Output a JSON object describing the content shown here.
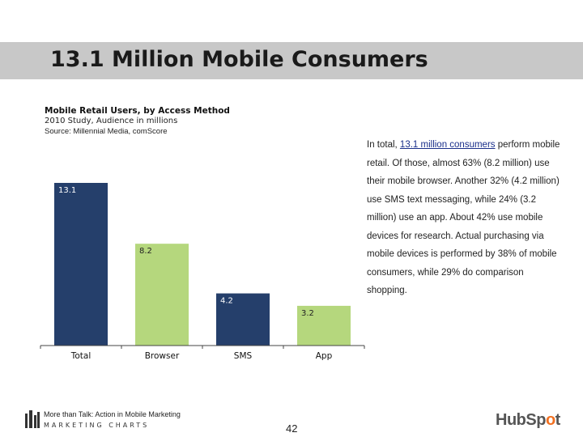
{
  "slide": {
    "title": "13.1 Million Mobile Consumers",
    "page_number": "42"
  },
  "chart_header": {
    "title": "Mobile Retail Users, by Access Method",
    "subtitle": "2010 Study, Audience in millions",
    "source": "Source: Millennial Media, comScore"
  },
  "chart_data": {
    "type": "bar",
    "categories": [
      "Total",
      "Browser",
      "SMS",
      "App"
    ],
    "values": [
      13.1,
      8.2,
      4.2,
      3.2
    ],
    "value_labels": [
      "13.1",
      "8.2",
      "4.2",
      "3.2"
    ],
    "colors": [
      "#253f6b",
      "#b5d77d",
      "#253f6b",
      "#b5d77d"
    ],
    "ylim": [
      0,
      13.1
    ],
    "grid": false,
    "legend": "none"
  },
  "description": {
    "before_link": "In total, ",
    "link_text": "13.1 million consumers",
    "after_link": " perform mobile retail. Of those, almost 63% (8.2 million) use their mobile browser. Another 32% (4.2 million) use SMS text messaging, while 24% (3.2 million) use an app. About 42% use mobile devices for research. Actual purchasing via mobile devices is performed by 38% of mobile consumers, while 29% do comparison shopping."
  },
  "footer": {
    "line1": "More than Talk: Action in Mobile Marketing",
    "line2": "MARKETING CHARTS",
    "brand_part1": "HubSp",
    "brand_accent": "o",
    "brand_part2": "t",
    "colors": {
      "brand_accent": "#f37121",
      "brand_text": "#555555"
    }
  }
}
